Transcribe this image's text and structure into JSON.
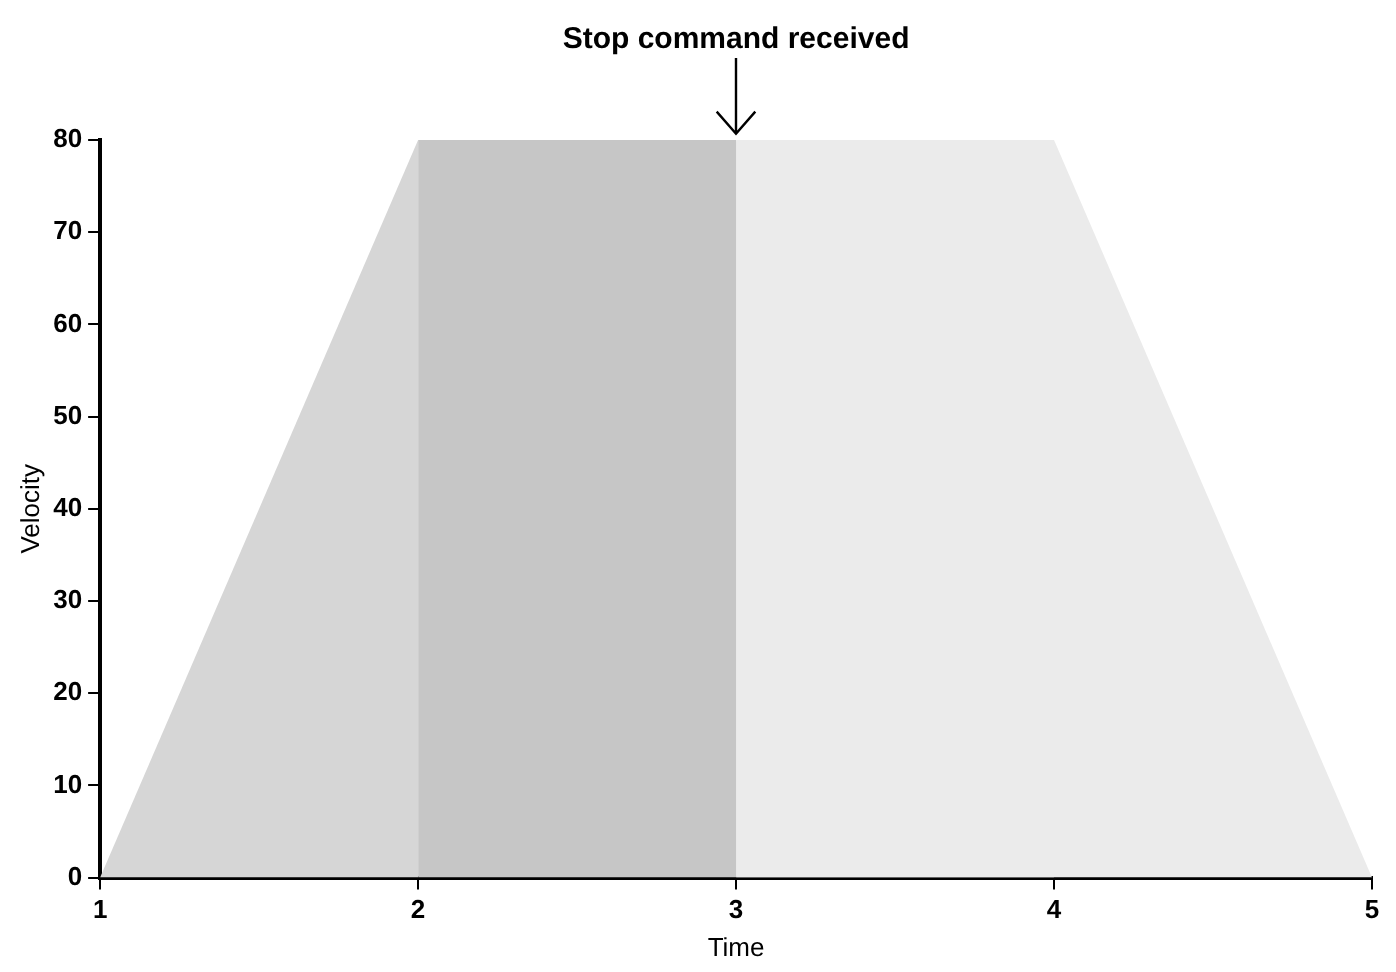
{
  "chart_data": {
    "type": "area",
    "xlabel": "Time",
    "ylabel": "Velocity",
    "xlim": [
      1,
      5
    ],
    "xticks": [
      1,
      2,
      3,
      4,
      5
    ],
    "ylim": [
      0,
      80
    ],
    "yticks": [
      0,
      10,
      20,
      30,
      40,
      50,
      60,
      70,
      80
    ],
    "grid": false,
    "legend": false,
    "series": [
      {
        "x": [
          3,
          4,
          5
        ],
        "values": [
          80,
          80,
          0
        ],
        "color": "#ebebeb"
      },
      {
        "x": [
          1,
          2
        ],
        "values": [
          0,
          80
        ],
        "color": "#d6d6d6"
      },
      {
        "x": [
          2,
          3
        ],
        "values": [
          80,
          80
        ],
        "color": "#c6c6c6"
      },
      {
        "x": [
          3,
          4
        ],
        "values": [
          80,
          0
        ],
        "color": "#d2d2d2"
      }
    ],
    "annotations": [
      {
        "text": "Stop command received",
        "x": 3,
        "y": 80
      }
    ]
  }
}
